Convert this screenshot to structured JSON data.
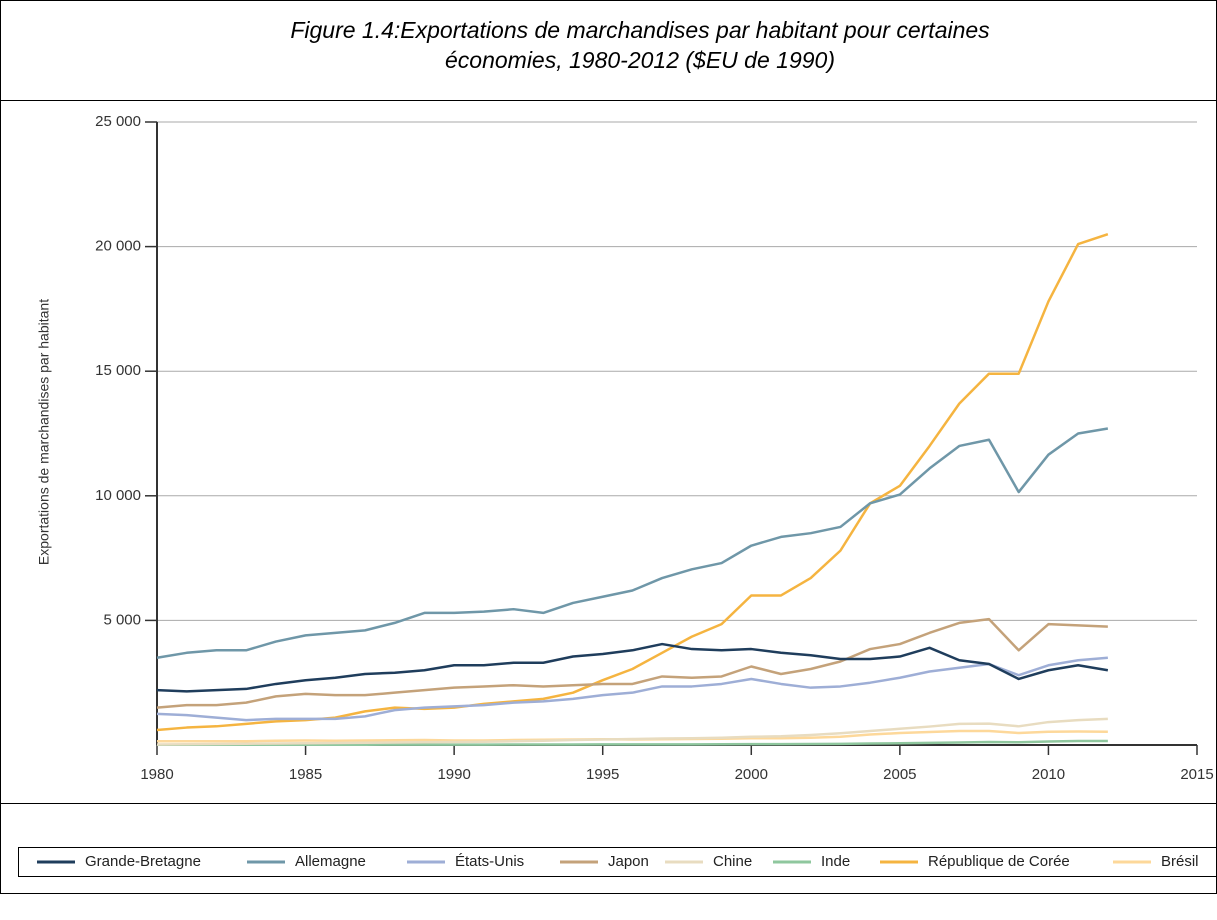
{
  "chart_data": {
    "type": "line",
    "title": [
      "Figure 1.4:Exportations de marchandises par habitant pour certaines",
      "économies, 1980-2012 ($EU de 1990)"
    ],
    "y_label": "Exportations de marchandises par habitant",
    "x": [
      1980,
      1981,
      1982,
      1983,
      1984,
      1985,
      1986,
      1987,
      1988,
      1989,
      1990,
      1991,
      1992,
      1993,
      1994,
      1995,
      1996,
      1997,
      1998,
      1999,
      2000,
      2001,
      2002,
      2003,
      2004,
      2005,
      2006,
      2007,
      2008,
      2009,
      2010,
      2011,
      2012
    ],
    "xlim": [
      1980,
      2015
    ],
    "xticks": [
      1980,
      1985,
      1990,
      1995,
      2000,
      2005,
      2010,
      2015
    ],
    "ylim": [
      0,
      25000
    ],
    "yticks": [
      {
        "value": 5000,
        "label": "5 000"
      },
      {
        "value": 10000,
        "label": "10 000"
      },
      {
        "value": 15000,
        "label": "15 000"
      },
      {
        "value": 20000,
        "label": "20 000"
      },
      {
        "value": 25000,
        "label": "25 000"
      }
    ],
    "grid": true,
    "series": [
      {
        "name": "Grande-Bretagne",
        "color": "#1f3d5c",
        "values": [
          2200,
          2150,
          2200,
          2250,
          2450,
          2600,
          2700,
          2850,
          2900,
          3000,
          3200,
          3200,
          3300,
          3300,
          3550,
          3650,
          3800,
          4050,
          3850,
          3800,
          3850,
          3700,
          3600,
          3450,
          3450,
          3550,
          3900,
          3400,
          3250,
          2650,
          3000,
          3200,
          3000
        ]
      },
      {
        "name": "Allemagne",
        "color": "#6f97a8",
        "values": [
          3500,
          3700,
          3800,
          3800,
          4150,
          4400,
          4500,
          4600,
          4900,
          5300,
          5300,
          5350,
          5450,
          5300,
          5700,
          5950,
          6200,
          6700,
          7050,
          7300,
          8000,
          8350,
          8500,
          8750,
          9700,
          10050,
          11100,
          12000,
          12250,
          10150,
          11650,
          12500,
          12700
        ]
      },
      {
        "name": "États-Unis",
        "color": "#9eaed6",
        "values": [
          1250,
          1200,
          1100,
          1000,
          1050,
          1050,
          1050,
          1150,
          1400,
          1500,
          1550,
          1600,
          1700,
          1750,
          1850,
          2000,
          2100,
          2350,
          2350,
          2450,
          2650,
          2450,
          2300,
          2350,
          2500,
          2700,
          2950,
          3100,
          3250,
          2800,
          3200,
          3400,
          3500
        ]
      },
      {
        "name": "Japon",
        "color": "#c4a27a",
        "values": [
          1500,
          1600,
          1600,
          1700,
          1950,
          2050,
          2000,
          2000,
          2100,
          2200,
          2300,
          2350,
          2400,
          2350,
          2400,
          2450,
          2450,
          2750,
          2700,
          2750,
          3150,
          2850,
          3050,
          3350,
          3850,
          4050,
          4500,
          4900,
          5050,
          3800,
          4850,
          4800,
          4750
        ]
      },
      {
        "name": "Chine",
        "color": "#e8dcc0",
        "values": [
          20,
          30,
          40,
          50,
          60,
          70,
          80,
          90,
          100,
          110,
          120,
          130,
          150,
          170,
          200,
          220,
          240,
          260,
          270,
          290,
          330,
          350,
          400,
          470,
          560,
          650,
          740,
          850,
          860,
          750,
          920,
          1000,
          1050
        ]
      },
      {
        "name": "Inde",
        "color": "#8fc79e",
        "values": [
          10,
          10,
          10,
          10,
          10,
          10,
          10,
          10,
          15,
          15,
          15,
          15,
          20,
          20,
          20,
          25,
          25,
          25,
          25,
          30,
          35,
          35,
          40,
          45,
          60,
          70,
          85,
          100,
          120,
          110,
          140,
          160,
          160
        ]
      },
      {
        "name": "République de Corée",
        "color": "#f5b440",
        "values": [
          600,
          700,
          750,
          850,
          950,
          1000,
          1100,
          1350,
          1500,
          1450,
          1500,
          1650,
          1750,
          1850,
          2100,
          2600,
          3050,
          3700,
          4350,
          4850,
          6000,
          6000,
          6700,
          7800,
          9700,
          10400,
          12000,
          13700,
          14900,
          14900,
          17800,
          20100,
          20500
        ]
      },
      {
        "name": "Brésil",
        "color": "#fdd89a",
        "values": [
          150,
          150,
          150,
          150,
          170,
          180,
          170,
          180,
          190,
          200,
          180,
          180,
          200,
          210,
          220,
          230,
          220,
          230,
          240,
          250,
          270,
          270,
          290,
          330,
          420,
          480,
          520,
          560,
          560,
          480,
          530,
          540,
          530
        ]
      }
    ]
  }
}
